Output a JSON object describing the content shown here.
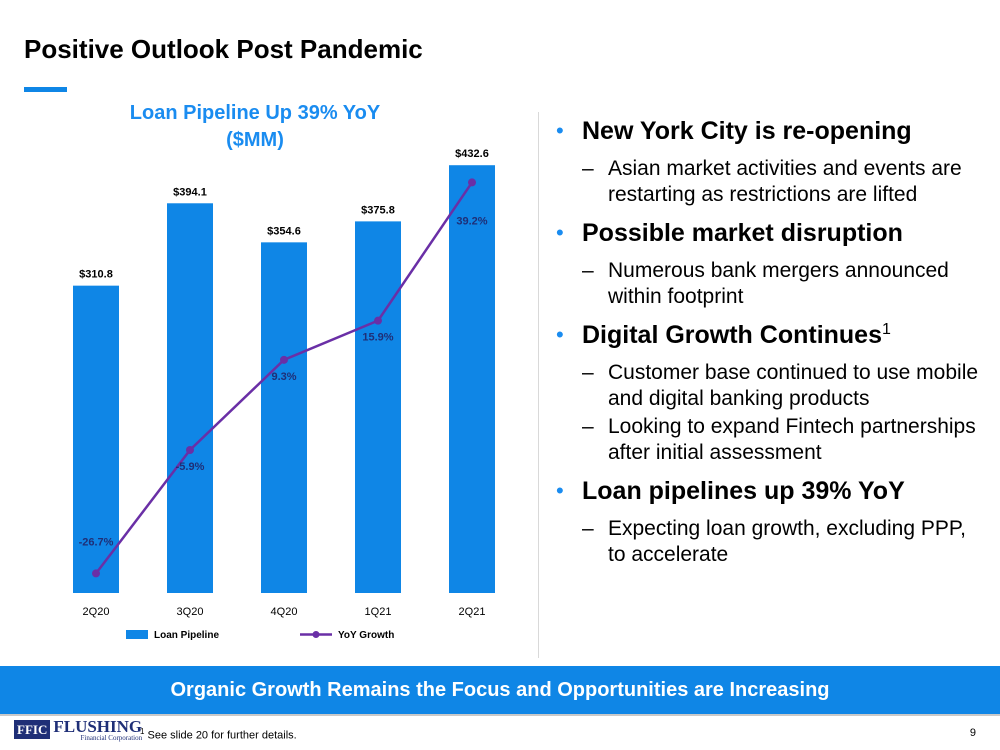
{
  "slide": {
    "title": "Positive Outlook Post Pandemic",
    "banner": "Organic Growth Remains the Focus and Opportunities are Increasing",
    "footnote_marker": "1",
    "footnote": " See slide 20 for further details.",
    "page_number": "9",
    "logo_mark": "FFIC",
    "logo_name": "FLUSHING",
    "logo_sub": "Financial Corporation",
    "accent_color": "#0f86e6"
  },
  "bullets": [
    {
      "heading": "New York City is re-opening",
      "sup": "",
      "subs": [
        "Asian market activities and events are restarting as restrictions are lifted"
      ]
    },
    {
      "heading": "Possible market disruption",
      "sup": "",
      "subs": [
        "Numerous bank mergers announced within footprint"
      ]
    },
    {
      "heading": "Digital Growth Continues",
      "sup": "1",
      "subs": [
        "Customer base continued to use mobile and digital banking products",
        "Looking to expand Fintech partnerships after initial assessment"
      ]
    },
    {
      "heading": "Loan pipelines up 39% YoY",
      "sup": "",
      "subs": [
        "Expecting loan growth, excluding PPP, to accelerate"
      ]
    }
  ],
  "chart_data": {
    "type": "bar",
    "title": "Loan Pipeline Up 39% YoY",
    "subtitle": "($MM)",
    "categories": [
      "2Q20",
      "3Q20",
      "4Q20",
      "1Q21",
      "2Q21"
    ],
    "series": [
      {
        "name": "Loan Pipeline",
        "kind": "bar",
        "values": [
          310.8,
          394.1,
          354.6,
          375.8,
          432.6
        ],
        "labels": [
          "$310.8",
          "$394.1",
          "$354.6",
          "$375.8",
          "$432.6"
        ],
        "color": "#0f86e6"
      },
      {
        "name": "YoY Growth",
        "kind": "line",
        "values": [
          -26.7,
          -5.9,
          9.3,
          15.9,
          39.2
        ],
        "labels": [
          "-26.7%",
          "-5.9%",
          "9.3%",
          "15.9%",
          "39.2%"
        ],
        "color": "#6a2fa6"
      }
    ],
    "bar_axis_max": 450,
    "line_axis_range": [
      -30,
      45
    ],
    "grid": false,
    "legend_position": "bottom"
  }
}
